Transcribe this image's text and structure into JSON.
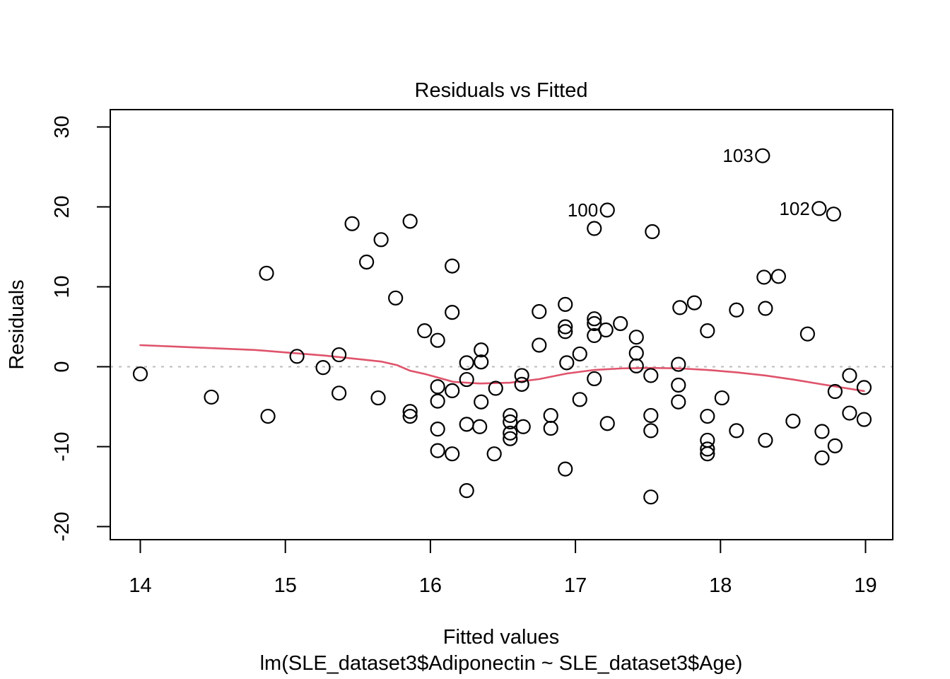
{
  "chart_data": {
    "type": "scatter",
    "title": "Residuals vs Fitted",
    "xlabel": "Fitted values",
    "sublabel": "lm(SLE_dataset3$Adiponectin ~ SLE_dataset3$Age)",
    "ylabel": "Residuals",
    "xlim": [
      13.8,
      19.2
    ],
    "ylim": [
      -21.8,
      32.2
    ],
    "x_ticks": [
      14,
      15,
      16,
      17,
      18,
      19
    ],
    "y_ticks": [
      -20,
      -10,
      0,
      10,
      20,
      30
    ],
    "grid": false,
    "legend": "none",
    "zero_line_y": 0,
    "colors": {
      "point_stroke": "#000000",
      "smoother": "#DF536B",
      "zero_line": "#bbbbbb",
      "text": "#000000"
    },
    "points": [
      [
        14.0,
        -0.9
      ],
      [
        14.49,
        -3.8
      ],
      [
        14.88,
        -6.2
      ],
      [
        14.87,
        11.7
      ],
      [
        15.08,
        1.3
      ],
      [
        15.26,
        -0.1
      ],
      [
        15.37,
        1.5
      ],
      [
        15.37,
        -3.3
      ],
      [
        15.46,
        17.9
      ],
      [
        15.56,
        13.1
      ],
      [
        15.64,
        -3.9
      ],
      [
        15.66,
        15.9
      ],
      [
        15.76,
        8.6
      ],
      [
        15.86,
        18.2
      ],
      [
        15.86,
        -5.6
      ],
      [
        15.86,
        -6.2
      ],
      [
        15.96,
        4.5
      ],
      [
        16.05,
        3.3
      ],
      [
        16.15,
        12.6
      ],
      [
        16.15,
        6.8
      ],
      [
        16.05,
        -2.5
      ],
      [
        16.05,
        -4.3
      ],
      [
        16.05,
        -7.8
      ],
      [
        16.05,
        -10.5
      ],
      [
        16.15,
        -3.0
      ],
      [
        16.15,
        -10.9
      ],
      [
        16.25,
        0.5
      ],
      [
        16.25,
        -1.6
      ],
      [
        16.25,
        -7.2
      ],
      [
        16.25,
        -15.5
      ],
      [
        16.35,
        2.1
      ],
      [
        16.35,
        0.6
      ],
      [
        16.35,
        -4.4
      ],
      [
        16.34,
        -7.5
      ],
      [
        16.45,
        -2.7
      ],
      [
        16.44,
        -10.9
      ],
      [
        16.55,
        -6.1
      ],
      [
        16.55,
        -6.9
      ],
      [
        16.55,
        -8.3
      ],
      [
        16.55,
        -9.0
      ],
      [
        16.63,
        -1.1
      ],
      [
        16.63,
        -2.2
      ],
      [
        16.64,
        -7.5
      ],
      [
        16.75,
        6.9
      ],
      [
        16.75,
        2.7
      ],
      [
        16.83,
        -6.1
      ],
      [
        16.83,
        -7.7
      ],
      [
        16.93,
        7.8
      ],
      [
        16.93,
        5.0
      ],
      [
        16.93,
        4.4
      ],
      [
        16.94,
        0.5
      ],
      [
        16.93,
        -12.8
      ],
      [
        17.03,
        1.6
      ],
      [
        17.03,
        -4.1
      ],
      [
        17.13,
        6.0
      ],
      [
        17.13,
        5.4
      ],
      [
        17.13,
        3.9
      ],
      [
        17.13,
        -1.5
      ],
      [
        17.13,
        17.3
      ],
      [
        17.22,
        19.6
      ],
      [
        17.21,
        4.6
      ],
      [
        17.22,
        -7.1
      ],
      [
        17.31,
        5.4
      ],
      [
        17.42,
        3.7
      ],
      [
        17.42,
        1.7
      ],
      [
        17.42,
        0.1
      ],
      [
        17.53,
        16.9
      ],
      [
        17.52,
        -1.1
      ],
      [
        17.52,
        -6.1
      ],
      [
        17.52,
        -8.0
      ],
      [
        17.52,
        -16.3
      ],
      [
        17.71,
        0.3
      ],
      [
        17.71,
        -2.3
      ],
      [
        17.71,
        -4.4
      ],
      [
        17.72,
        7.4
      ],
      [
        17.82,
        8.0
      ],
      [
        17.91,
        4.5
      ],
      [
        17.91,
        -6.2
      ],
      [
        17.91,
        -9.2
      ],
      [
        17.91,
        -10.3
      ],
      [
        17.91,
        -10.9
      ],
      [
        18.01,
        -3.9
      ],
      [
        18.11,
        7.1
      ],
      [
        18.11,
        -8.0
      ],
      [
        18.29,
        26.4
      ],
      [
        18.3,
        11.2
      ],
      [
        18.4,
        11.3
      ],
      [
        18.31,
        7.3
      ],
      [
        18.31,
        -9.2
      ],
      [
        18.5,
        -6.8
      ],
      [
        18.6,
        4.1
      ],
      [
        18.68,
        19.8
      ],
      [
        18.78,
        19.1
      ],
      [
        18.7,
        -8.1
      ],
      [
        18.7,
        -11.4
      ],
      [
        18.79,
        -9.9
      ],
      [
        18.79,
        -3.1
      ],
      [
        18.89,
        -1.1
      ],
      [
        18.89,
        -5.8
      ],
      [
        18.99,
        -2.6
      ],
      [
        18.99,
        -6.6
      ]
    ],
    "labeled_points": [
      {
        "label": "100",
        "x": 17.22,
        "y": 19.6
      },
      {
        "label": "102",
        "x": 18.68,
        "y": 19.8
      },
      {
        "label": "103",
        "x": 18.29,
        "y": 26.4
      }
    ],
    "smoother_line": [
      [
        14.0,
        2.7
      ],
      [
        14.79,
        2.1
      ],
      [
        15.27,
        1.4
      ],
      [
        15.66,
        0.65
      ],
      [
        15.77,
        0.2
      ],
      [
        15.86,
        -0.5
      ],
      [
        15.96,
        -0.9
      ],
      [
        16.16,
        -1.9
      ],
      [
        16.34,
        -2.1
      ],
      [
        16.55,
        -2.0
      ],
      [
        16.75,
        -1.55
      ],
      [
        16.94,
        -0.85
      ],
      [
        17.13,
        -0.4
      ],
      [
        17.33,
        -0.2
      ],
      [
        17.52,
        -0.15
      ],
      [
        17.71,
        -0.2
      ],
      [
        17.91,
        -0.4
      ],
      [
        18.11,
        -0.7
      ],
      [
        18.31,
        -1.1
      ],
      [
        18.5,
        -1.6
      ],
      [
        18.7,
        -2.2
      ],
      [
        18.99,
        -3.05
      ]
    ]
  }
}
